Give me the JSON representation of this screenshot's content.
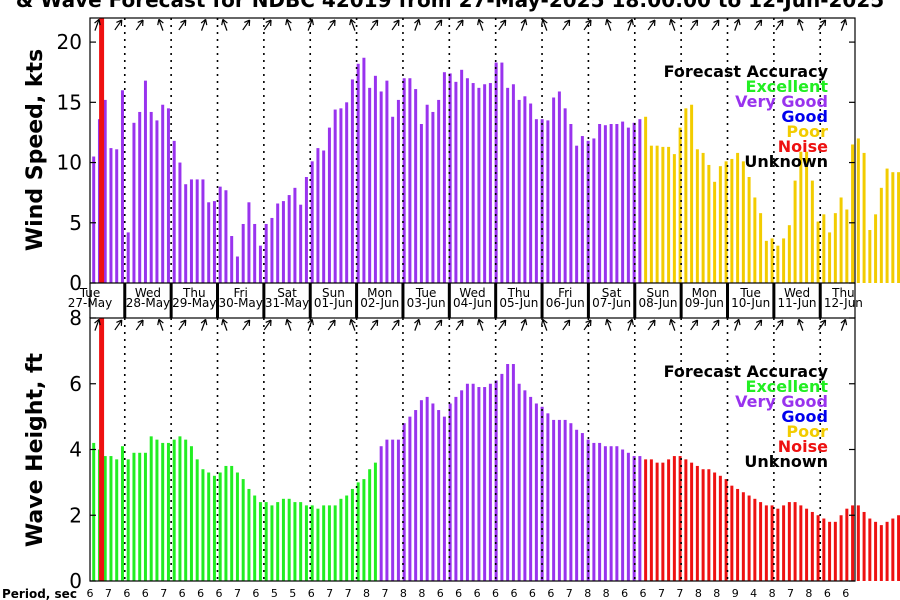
{
  "title": "& Wave Forecast for NDBC 42019 from 27-May-2025 18:00:00 to 12-Jun-2025",
  "period_label": "Period, sec",
  "day_labels": [
    {
      "day": "Tue",
      "date": "27-May"
    },
    {
      "day": "Wed",
      "date": "28-May"
    },
    {
      "day": "Thu",
      "date": "29-May"
    },
    {
      "day": "Fri",
      "date": "30-May"
    },
    {
      "day": "Sat",
      "date": "31-May"
    },
    {
      "day": "Sun",
      "date": "01-Jun"
    },
    {
      "day": "Mon",
      "date": "02-Jun"
    },
    {
      "day": "Tue",
      "date": "03-Jun"
    },
    {
      "day": "Wed",
      "date": "04-Jun"
    },
    {
      "day": "Thu",
      "date": "05-Jun"
    },
    {
      "day": "Fri",
      "date": "06-Jun"
    },
    {
      "day": "Sat",
      "date": "07-Jun"
    },
    {
      "day": "Sun",
      "date": "08-Jun"
    },
    {
      "day": "Mon",
      "date": "09-Jun"
    },
    {
      "day": "Tue",
      "date": "10-Jun"
    },
    {
      "day": "Wed",
      "date": "11-Jun"
    },
    {
      "day": "Thu",
      "date": "12-Jun"
    }
  ],
  "legend": {
    "title": "Forecast Accuracy",
    "items": [
      {
        "label": "Excellent",
        "color": "#22ee22"
      },
      {
        "label": "Very Good",
        "color": "#9933ee"
      },
      {
        "label": "Good",
        "color": "#0000ee"
      },
      {
        "label": "Poor",
        "color": "#f2cc00"
      },
      {
        "label": "Noise",
        "color": "#ee1111"
      },
      {
        "label": "Unknown",
        "color": "#000000"
      }
    ]
  },
  "colors": {
    "excellent": "#22ee22",
    "very_good": "#9933ee",
    "poor": "#f2cc00",
    "noise": "#ee1111",
    "now_line": "#ee1111",
    "axis": "#000000"
  },
  "chart_data": [
    {
      "type": "bar",
      "ylabel": "Wind Speed, kts",
      "ylim": [
        0,
        22
      ],
      "yticks": [
        0,
        5,
        10,
        15,
        20
      ],
      "start_x_day": 0.08,
      "step_x_day": 0.124,
      "color_blocks": [
        {
          "color": "very_good",
          "count": 96
        },
        {
          "color": "poor",
          "count": 54
        }
      ],
      "values": [
        10.5,
        13.6,
        15.2,
        11.2,
        11.1,
        16.0,
        4.2,
        13.3,
        14.2,
        16.8,
        14.2,
        13.5,
        14.8,
        14.5,
        11.8,
        10.0,
        8.2,
        8.6,
        8.6,
        8.6,
        6.7,
        6.8,
        8.0,
        7.7,
        3.9,
        2.2,
        4.9,
        6.7,
        4.9,
        3.1,
        4.9,
        5.4,
        6.6,
        6.8,
        7.3,
        7.9,
        6.5,
        8.8,
        10.1,
        11.2,
        11.0,
        12.9,
        14.4,
        14.5,
        15.0,
        16.9,
        18.2,
        18.7,
        16.2,
        17.2,
        15.9,
        16.8,
        13.8,
        15.2,
        17.0,
        17.0,
        16.1,
        13.2,
        14.8,
        14.2,
        15.2,
        17.5,
        17.4,
        16.7,
        17.7,
        17.0,
        16.6,
        16.2,
        16.5,
        16.6,
        18.3,
        18.3,
        16.2,
        16.5,
        15.2,
        15.5,
        14.9,
        13.6,
        13.6,
        13.5,
        15.4,
        15.9,
        14.5,
        13.2,
        11.4,
        12.2,
        11.8,
        12.0,
        13.2,
        13.1,
        13.2,
        13.2,
        13.4,
        12.9,
        13.3,
        13.6,
        13.8,
        11.4,
        11.4,
        11.3,
        11.3,
        10.7,
        12.9,
        14.5,
        14.8,
        11.1,
        10.8,
        9.8,
        8.4,
        9.7,
        10.1,
        10.3,
        10.8,
        10.1,
        8.8,
        7.1,
        5.8,
        3.5,
        3.7,
        3.1,
        3.7,
        4.8,
        8.5,
        10.9,
        10.9,
        8.5,
        5.1,
        5.7,
        4.2,
        5.8,
        7.1,
        6.1,
        11.5,
        12.0,
        10.8,
        4.4,
        5.7,
        7.9,
        9.5,
        9.2,
        9.2,
        9.2,
        9.0,
        7.9,
        9.5,
        10.9,
        5.9,
        2.6,
        8.2
      ]
    },
    {
      "type": "bar",
      "ylabel": "Wave Height, ft",
      "ylim": [
        0,
        8
      ],
      "yticks": [
        0,
        2,
        4,
        6,
        8
      ],
      "start_x_day": 0.08,
      "step_x_day": 0.124,
      "color_blocks": [
        {
          "color": "excellent",
          "count": 50
        },
        {
          "color": "very_good",
          "count": 46
        },
        {
          "color": "noise",
          "count": 54
        }
      ],
      "values": [
        4.2,
        4.0,
        3.8,
        3.8,
        3.7,
        4.1,
        3.7,
        3.9,
        3.9,
        3.9,
        4.4,
        4.3,
        4.2,
        4.2,
        4.3,
        4.4,
        4.3,
        4.1,
        3.7,
        3.4,
        3.3,
        3.2,
        3.3,
        3.5,
        3.5,
        3.3,
        3.1,
        2.8,
        2.6,
        2.4,
        2.4,
        2.3,
        2.4,
        2.5,
        2.5,
        2.4,
        2.4,
        2.3,
        2.3,
        2.2,
        2.3,
        2.3,
        2.3,
        2.5,
        2.6,
        2.8,
        3.0,
        3.1,
        3.4,
        3.6,
        4.1,
        4.3,
        4.3,
        4.3,
        4.8,
        5.0,
        5.2,
        5.5,
        5.6,
        5.4,
        5.2,
        5.0,
        5.4,
        5.6,
        5.8,
        6.0,
        6.0,
        5.9,
        5.9,
        6.0,
        6.1,
        6.3,
        6.6,
        6.6,
        6.0,
        5.8,
        5.6,
        5.4,
        5.3,
        5.1,
        4.9,
        4.9,
        4.9,
        4.8,
        4.6,
        4.5,
        4.3,
        4.2,
        4.2,
        4.1,
        4.1,
        4.1,
        4.0,
        3.9,
        3.8,
        3.8,
        3.7,
        3.7,
        3.6,
        3.6,
        3.7,
        3.8,
        3.8,
        3.7,
        3.6,
        3.5,
        3.4,
        3.4,
        3.3,
        3.2,
        3.1,
        2.9,
        2.8,
        2.7,
        2.6,
        2.5,
        2.4,
        2.3,
        2.3,
        2.2,
        2.3,
        2.4,
        2.4,
        2.3,
        2.2,
        2.1,
        2.0,
        1.9,
        1.8,
        1.8,
        2.0,
        2.2,
        2.3,
        2.3,
        2.1,
        1.9,
        1.8,
        1.7,
        1.8,
        1.9,
        2.0,
        2.2,
        2.2,
        2.1,
        2.0,
        1.9,
        1.8,
        1.8,
        1.7,
        1.6
      ]
    }
  ],
  "period_ticks": [
    "6",
    "7",
    "6",
    "6",
    "7",
    "6",
    "6",
    "6",
    "7",
    "6",
    "5",
    "5",
    "6",
    "7",
    "7",
    "8",
    "7",
    "8",
    "8",
    "6",
    "6",
    "6",
    "6",
    "6",
    "6",
    "6",
    "7",
    "8",
    "8",
    "6",
    "6",
    "7",
    "7",
    "8",
    "8",
    "9",
    "4",
    "8",
    "7",
    "8",
    "6",
    "6",
    "4"
  ]
}
